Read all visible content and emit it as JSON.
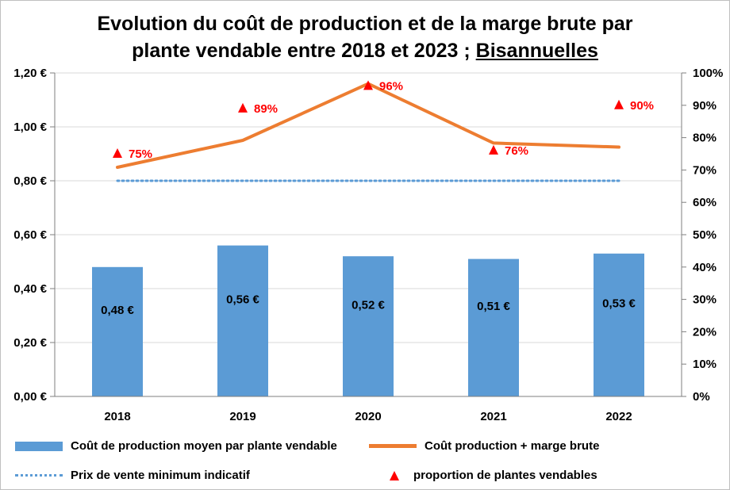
{
  "chart_data": {
    "type": "bar",
    "title_line1": "Evolution du coût de production et de la marge brute par",
    "title_line2_prefix": "plante vendable entre 2018 et 2023 ; ",
    "title_line2_underlined": "Bisannuelles",
    "categories": [
      "2018",
      "2019",
      "2020",
      "2021",
      "2022"
    ],
    "left_axis": {
      "ylim": [
        0,
        1.2
      ],
      "ticks": [
        0,
        0.2,
        0.4,
        0.6,
        0.8,
        1.0,
        1.2
      ],
      "tick_labels": [
        "0,00 €",
        "0,20 €",
        "0,40 €",
        "0,60 €",
        "0,80 €",
        "1,00 €",
        "1,20 €"
      ]
    },
    "right_axis": {
      "ylim": [
        0,
        100
      ],
      "ticks": [
        0,
        10,
        20,
        30,
        40,
        50,
        60,
        70,
        80,
        90,
        100
      ],
      "tick_labels": [
        "0%",
        "10%",
        "20%",
        "30%",
        "40%",
        "50%",
        "60%",
        "70%",
        "80%",
        "90%",
        "100%"
      ]
    },
    "series": [
      {
        "name": "Coût de production moyen par plante vendable",
        "kind": "bar",
        "axis": "left",
        "color": "#5b9bd5",
        "values": [
          0.48,
          0.56,
          0.52,
          0.51,
          0.53
        ],
        "labels": [
          "0,48 €",
          "0,56 €",
          "0,52 €",
          "0,51 €",
          "0,53 €"
        ]
      },
      {
        "name": "Coût production + marge brute",
        "kind": "line",
        "axis": "left",
        "color": "#ed7d31",
        "values": [
          0.85,
          0.95,
          1.16,
          0.94,
          0.925
        ]
      },
      {
        "name": "Prix de vente minimum indicatif",
        "kind": "dotted-line",
        "axis": "left",
        "color": "#5b9bd5",
        "values": [
          0.8,
          0.8,
          0.8,
          0.8,
          0.8
        ]
      },
      {
        "name": "proportion de plantes vendables",
        "kind": "scatter",
        "axis": "right",
        "color": "#ff0000",
        "values": [
          75,
          89,
          96,
          76,
          90
        ],
        "labels": [
          "75%",
          "89%",
          "96%",
          "76%",
          "90%"
        ]
      }
    ],
    "legend_position": "bottom"
  }
}
